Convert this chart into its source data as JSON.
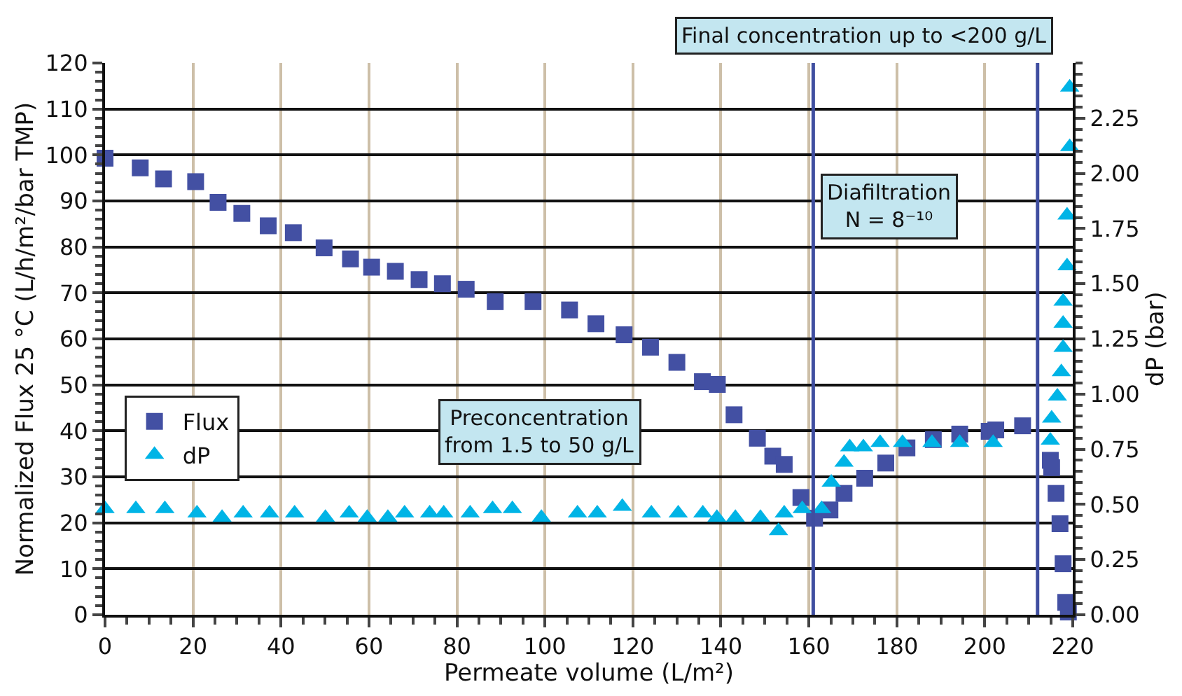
{
  "chart_data": {
    "type": "scatter",
    "xlabel": "Permeate volume (L/m²)",
    "ylabel": "Normalized Flux 25 °C (L/h/m²/bar TMP)",
    "y2label": "dP (bar)",
    "xlim": [
      0,
      220
    ],
    "xticks": [
      0,
      20,
      40,
      60,
      80,
      100,
      120,
      140,
      160,
      180,
      200,
      220
    ],
    "ylim": [
      0,
      120
    ],
    "yticks": [
      0,
      10,
      20,
      30,
      40,
      50,
      60,
      70,
      80,
      90,
      100,
      110,
      120
    ],
    "y2lim": [
      0,
      2.5
    ],
    "y2ticks": [
      {
        "value": 0,
        "label": "0.00"
      },
      0.25,
      {
        "value": 0.5,
        "label": "0.50"
      },
      0.75,
      {
        "value": 1,
        "label": "1.00"
      },
      1.25,
      {
        "value": 1.5,
        "label": "1.50"
      },
      1.75,
      {
        "value": 2,
        "label": "2.00"
      },
      2.25
    ],
    "grid": true,
    "legend": "left",
    "series": [
      {
        "name": "Flux",
        "color": "#4350a3",
        "marker": "square",
        "x": [
          0,
          8,
          13.3,
          20.6,
          25.7,
          31.1,
          37.1,
          42.8,
          49.8,
          55.8,
          60.6,
          66,
          71.4,
          76.7,
          82.1,
          88.7,
          97.3,
          105.6,
          111.6,
          118,
          124,
          130,
          135.8,
          139.2,
          143,
          148.3,
          151.8,
          154.4,
          158.2,
          161.3,
          164.8,
          168,
          172.7,
          177.5,
          182.3,
          188.3,
          194.3,
          201,
          202.5,
          208.6,
          214.9,
          215.2,
          216.2,
          217.1,
          217.8,
          218.4,
          219
        ],
        "values": [
          99.3,
          97.2,
          94.8,
          94.2,
          89.7,
          87.3,
          84.6,
          83.1,
          79.8,
          77.4,
          75.6,
          74.7,
          72.9,
          72,
          70.8,
          68.1,
          68.1,
          66.3,
          63.3,
          60.9,
          58.2,
          54.9,
          50.7,
          50.1,
          43.5,
          38.4,
          34.5,
          32.7,
          25.5,
          21,
          22.8,
          26.4,
          29.7,
          33,
          36.3,
          38.1,
          39.3,
          39.9,
          40.2,
          41.1,
          33.6,
          32,
          26.4,
          19.8,
          11.1,
          2.7,
          0.6
        ]
      },
      {
        "name": "dP",
        "color": "#00b4e6",
        "marker": "triangle",
        "axis": "y2",
        "x": [
          0,
          7,
          13.6,
          20.9,
          26.6,
          31.4,
          37.4,
          43.1,
          50.1,
          55.5,
          59.6,
          64.3,
          68.1,
          73.8,
          77,
          83,
          88.1,
          92.6,
          99.2,
          107.4,
          111.9,
          117.6,
          124.2,
          130.3,
          135.9,
          139.1,
          143.3,
          149,
          153.1,
          154.4,
          158.5,
          162.9,
          165.1,
          168,
          169.3,
          172.4,
          176.2,
          181.3,
          188,
          194.3,
          201.9,
          214.9,
          215.2,
          216.5,
          217.4,
          217.8,
          217.8,
          217.8,
          218.7,
          218.7,
          219.3,
          219.3
        ],
        "values": [
          0.48,
          0.48,
          0.48,
          0.46,
          0.44,
          0.46,
          0.46,
          0.46,
          0.44,
          0.46,
          0.44,
          0.44,
          0.46,
          0.46,
          0.46,
          0.46,
          0.48,
          0.48,
          0.44,
          0.46,
          0.46,
          0.49,
          0.46,
          0.46,
          0.46,
          0.44,
          0.44,
          0.44,
          0.38,
          0.46,
          0.48,
          0.48,
          0.6,
          0.69,
          0.76,
          0.76,
          0.78,
          0.78,
          0.78,
          0.78,
          0.78,
          0.79,
          0.89,
          0.99,
          1.1,
          1.21,
          1.32,
          1.42,
          1.58,
          1.81,
          2.12,
          2.39
        ]
      }
    ],
    "ref_lines": [
      {
        "axis": "x",
        "value": 161,
        "color": "#3f4ea0",
        "line_style": "solid"
      },
      {
        "axis": "x",
        "value": 212,
        "color": "#3f4ea0",
        "line_style": "solid"
      }
    ],
    "annotations": [
      "Final concentration up to <200 g/L",
      "Diafiltration\nN = 8⁻¹⁰",
      "Preconcentration\nfrom 1.5 to 50 g/L"
    ]
  }
}
